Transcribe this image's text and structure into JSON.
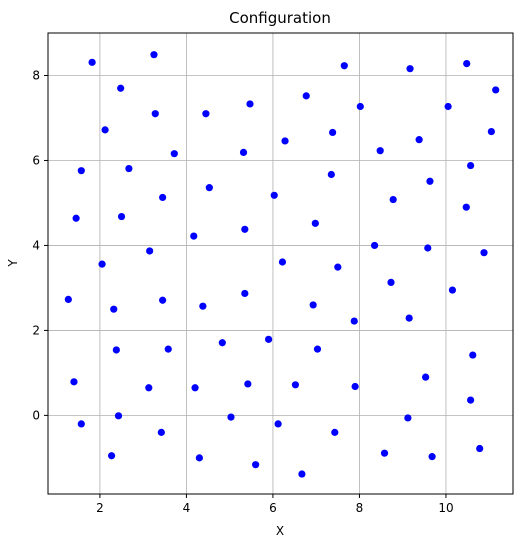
{
  "chart_data": {
    "type": "scatter",
    "title": "Configuration",
    "xlabel": "X",
    "ylabel": "Y",
    "xlim": [
      0.8,
      11.55
    ],
    "ylim": [
      -1.85,
      9.0
    ],
    "xticks": [
      2,
      4,
      6,
      8,
      10
    ],
    "yticks": [
      0,
      2,
      4,
      6,
      8
    ],
    "grid": true,
    "colors": {
      "points": "#0000ff"
    },
    "series": [
      {
        "x": [
          1.82,
          3.25,
          7.65,
          9.17,
          10.48,
          2.48,
          11.15,
          5.47,
          6.77,
          2.12,
          3.28,
          4.45,
          8.02,
          10.05,
          7.38,
          11.05,
          9.38,
          6.28,
          5.32,
          8.48,
          3.72,
          1.57,
          2.67,
          10.57,
          7.35,
          9.63,
          4.53,
          3.45,
          6.03,
          8.78,
          10.47,
          1.45,
          2.5,
          5.35,
          8.35,
          9.58,
          3.15,
          4.17,
          6.98,
          10.88,
          2.05,
          6.22,
          7.5,
          10.15,
          8.73,
          1.27,
          3.45,
          5.35,
          4.38,
          2.32,
          6.93,
          9.15,
          7.88,
          4.83,
          5.9,
          2.38,
          3.58,
          7.03,
          10.62,
          9.53,
          1.4,
          3.13,
          4.2,
          5.42,
          6.52,
          7.9,
          10.57,
          1.57,
          2.43,
          5.03,
          6.12,
          9.12,
          3.42,
          7.43,
          10.78,
          2.27,
          4.3,
          8.58,
          9.68,
          5.6,
          6.67
        ],
        "y": [
          8.31,
          8.49,
          8.23,
          8.16,
          8.28,
          7.7,
          7.66,
          7.33,
          7.52,
          6.72,
          7.1,
          7.1,
          7.27,
          7.27,
          6.66,
          6.68,
          6.49,
          6.46,
          6.19,
          6.23,
          6.16,
          5.76,
          5.81,
          5.88,
          5.67,
          5.51,
          5.36,
          5.13,
          5.18,
          5.08,
          4.9,
          4.64,
          4.68,
          4.38,
          4.0,
          3.94,
          3.87,
          4.22,
          4.52,
          3.83,
          3.56,
          3.61,
          3.49,
          2.95,
          3.13,
          2.73,
          2.71,
          2.87,
          2.57,
          2.5,
          2.6,
          2.29,
          2.22,
          1.71,
          1.79,
          1.54,
          1.56,
          1.56,
          1.42,
          0.9,
          0.79,
          0.65,
          0.65,
          0.74,
          0.72,
          0.68,
          0.36,
          -0.2,
          -0.01,
          -0.04,
          -0.2,
          -0.06,
          -0.4,
          -0.4,
          -0.78,
          -0.95,
          -1.0,
          -0.89,
          -0.97,
          -1.16,
          -1.38
        ]
      }
    ]
  }
}
